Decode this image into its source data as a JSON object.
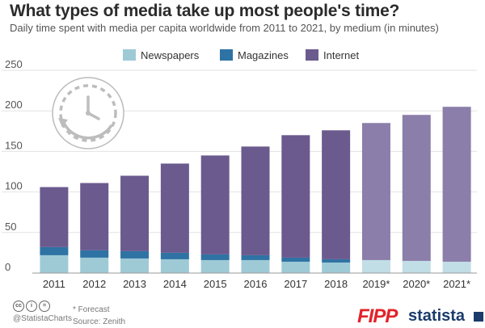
{
  "header": {
    "title": "What types of media take up most people's time?",
    "subtitle": "Daily time spent with media per capita worldwide from 2011 to 2021, by medium (in minutes)"
  },
  "footer": {
    "handle": "@StatistaCharts",
    "forecast_note": "* Forecast",
    "source": "Source: Zenith",
    "logo_fipp": "FIPP",
    "logo_statista": "statista"
  },
  "icons": [
    "clock-icon",
    "cc-license-icon"
  ],
  "colors": {
    "newspapers": "#9ecad6",
    "magazines": "#2e73a4",
    "internet": "#6b5a8e",
    "internet_forecast": "#8b7eaa",
    "forecast_base": "#c1dde6"
  },
  "chart_data": {
    "type": "bar",
    "stacked": true,
    "categories": [
      "2011",
      "2012",
      "2013",
      "2014",
      "2015",
      "2016",
      "2017",
      "2018",
      "2019*",
      "2020*",
      "2021*"
    ],
    "forecast_from_index": 8,
    "series": [
      {
        "name": "Newspapers",
        "values": [
          22,
          19,
          18,
          17,
          16,
          16,
          14,
          13,
          13,
          12,
          11
        ]
      },
      {
        "name": "Magazines",
        "values": [
          10,
          9,
          9,
          8,
          7,
          6,
          5,
          4,
          3,
          3,
          3
        ]
      },
      {
        "name": "Internet",
        "values": [
          74,
          83,
          93,
          110,
          122,
          134,
          151,
          159,
          169,
          180,
          191
        ]
      }
    ],
    "ylim": [
      0,
      250
    ],
    "yticks": [
      0,
      50,
      100,
      150,
      200,
      250
    ],
    "grid": true,
    "legend": "top"
  }
}
